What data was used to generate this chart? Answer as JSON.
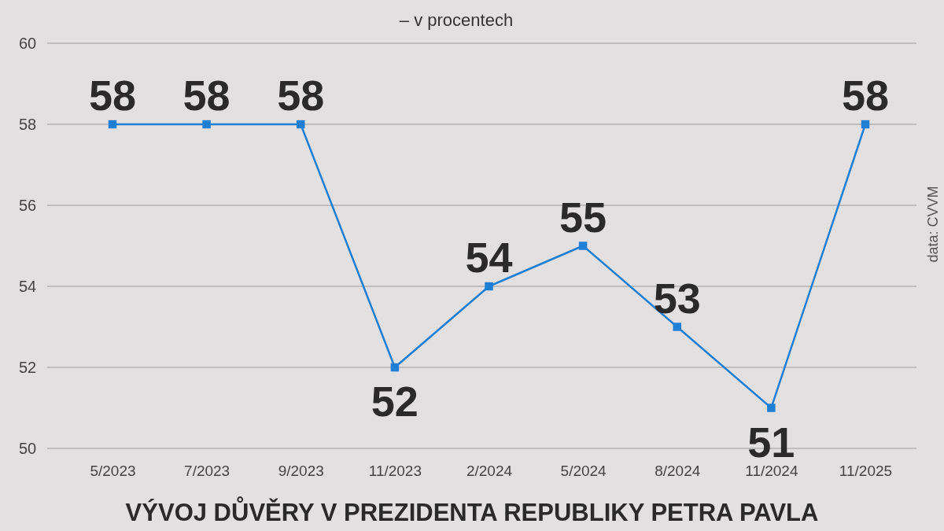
{
  "chart_data": {
    "type": "line",
    "title": "VÝVOJ DŮVĚRY V PREZIDENTA REPUBLIKY PETRA PAVLA",
    "subtitle": "– v procentech",
    "annotations": [
      "data: CVVM"
    ],
    "categories": [
      "5/2023",
      "7/2023",
      "9/2023",
      "11/2023",
      "2/2024",
      "5/2024",
      "8/2024",
      "11/2024",
      "11/2025"
    ],
    "series": [
      {
        "color": "#1f7fd4",
        "values": [
          58,
          58,
          58,
          52,
          54,
          55,
          53,
          51,
          58
        ]
      }
    ],
    "ylim": [
      50,
      60
    ],
    "yticks": [
      50,
      52,
      54,
      56,
      58,
      60
    ],
    "grid": "y",
    "marker": "square",
    "line_style": "solid",
    "data_labels": true
  }
}
